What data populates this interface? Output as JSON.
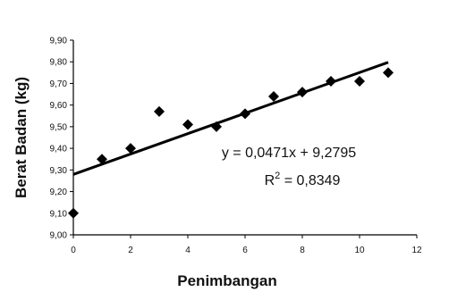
{
  "chart_data": {
    "type": "scatter",
    "xlabel": "Penimbangan",
    "ylabel": "Berat Badan (kg)",
    "xlim": [
      0,
      12
    ],
    "ylim": [
      9.0,
      9.9
    ],
    "x_ticks": [
      "0",
      "2",
      "4",
      "6",
      "8",
      "10",
      "12"
    ],
    "y_ticks": [
      "9,00",
      "9,10",
      "9,20",
      "9,30",
      "9,40",
      "9,50",
      "9,60",
      "9,70",
      "9,80",
      "9,90"
    ],
    "grid": false,
    "legend": "none",
    "series": [
      {
        "marker": "diamond",
        "color": "#000000",
        "x": [
          0,
          1,
          2,
          3,
          4,
          5,
          6,
          7,
          8,
          9,
          10,
          11
        ],
        "y": [
          9.1,
          9.35,
          9.4,
          9.57,
          9.51,
          9.5,
          9.56,
          9.64,
          9.66,
          9.71,
          9.71,
          9.75
        ]
      }
    ],
    "trendline": {
      "type": "linear",
      "slope": 0.0471,
      "intercept": 9.2795,
      "x_range": [
        0,
        11
      ],
      "color": "#000000"
    },
    "annotations": {
      "equation": "y = 0,0471x + 9,2795",
      "r_squared_prefix": "R",
      "r_squared_superscript": "2",
      "r_squared_value": " = 0,8349"
    }
  }
}
